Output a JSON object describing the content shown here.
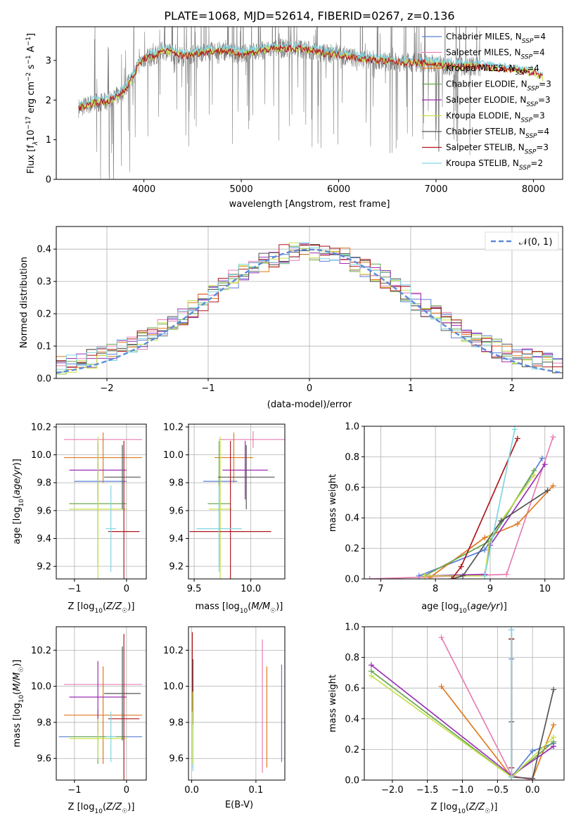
{
  "figure": {
    "title": "PLATE=1068, MJD=52614, FIBERID=0267, z=0.136"
  },
  "colors": {
    "Chabrier MILES": "#5b7fd6",
    "Salpeter MILES": "#e77fb3",
    "Kroupa MILES": "#e07a1f",
    "Chabrier ELODIE": "#6aa84f",
    "Salpeter ELODIE": "#9b2fb5",
    "Kroupa ELODIE": "#c6e04a",
    "Chabrier STELIB": "#555555",
    "Salpeter STELIB": "#b0191e",
    "Kroupa STELIB": "#7fd6e0",
    "data": "#808080",
    "normal": "#5b8bd8"
  },
  "chart_data": [
    {
      "id": "spectrum",
      "type": "line",
      "xlabel": "wavelength [Angstrom, rest frame]",
      "ylabel_main": "Flux [f",
      "ylabel_sub1": "λ",
      "ylabel_mid": "10",
      "ylabel_sup1": "−17",
      "ylabel_rest": " erg cm",
      "ylabel_sup2": "−2",
      "ylabel_rest2": " s",
      "ylabel_sup3": "−1",
      "ylabel_rest3": " A",
      "ylabel_sup4": "−1",
      "ylabel_end": "]",
      "xlim": [
        3100,
        8300
      ],
      "ylim": [
        0,
        3.85
      ],
      "xticks": [
        4000,
        5000,
        6000,
        7000,
        8000
      ],
      "yticks": [
        0,
        1,
        2,
        3
      ],
      "grid": false,
      "legend_position": "upper right",
      "legend": [
        {
          "model": "Chabrier MILES",
          "label": "Chabrier MILES, N",
          "sub": "SSP",
          "value": "=4"
        },
        {
          "model": "Salpeter MILES",
          "label": "Salpeter MILES, N",
          "sub": "SSP",
          "value": "=4"
        },
        {
          "model": "Kroupa MILES",
          "label": "Kroupa MILES, N",
          "sub": "SSP",
          "value": "=4"
        },
        {
          "model": "Chabrier ELODIE",
          "label": "Chabrier ELODIE, N",
          "sub": "SSP",
          "value": "=3"
        },
        {
          "model": "Salpeter ELODIE",
          "label": "Salpeter ELODIE, N",
          "sub": "SSP",
          "value": "=3"
        },
        {
          "model": "Kroupa ELODIE",
          "label": "Kroupa ELODIE, N",
          "sub": "SSP",
          "value": "=3"
        },
        {
          "model": "Chabrier STELIB",
          "label": "Chabrier STELIB, N",
          "sub": "SSP",
          "value": "=4"
        },
        {
          "model": "Salpeter STELIB",
          "label": "Salpeter STELIB, N",
          "sub": "SSP",
          "value": "=3"
        },
        {
          "model": "Kroupa STELIB",
          "label": "Kroupa STELIB, N",
          "sub": "SSP",
          "value": "=2"
        }
      ],
      "model_curve": {
        "x": [
          3330,
          3400,
          3500,
          3600,
          3700,
          3800,
          3900,
          3950,
          4000,
          4100,
          4200,
          4300,
          4400,
          4600,
          4800,
          5000,
          5200,
          5400,
          5600,
          5800,
          6000,
          6200,
          6400,
          6600,
          6800,
          7000,
          7200,
          7400,
          7600,
          7800,
          8000,
          8100
        ],
        "y": [
          1.8,
          1.85,
          1.95,
          1.95,
          2.05,
          2.25,
          2.65,
          2.9,
          3.05,
          3.1,
          3.25,
          3.2,
          3.1,
          3.2,
          3.25,
          3.15,
          3.25,
          3.3,
          3.3,
          3.2,
          3.15,
          3.05,
          3.0,
          2.95,
          2.95,
          2.9,
          2.85,
          2.85,
          2.8,
          2.75,
          2.7,
          2.55
        ]
      }
    },
    {
      "id": "residuals",
      "type": "histogram",
      "xlabel": "(data-model)/error",
      "ylabel": "Normed distribution",
      "xlim": [
        -2.5,
        2.5
      ],
      "ylim": [
        0,
        0.47
      ],
      "xticks": [
        -2,
        -1,
        0,
        1,
        2
      ],
      "yticks": [
        0.0,
        0.1,
        0.2,
        0.3,
        0.4
      ],
      "grid": true,
      "legend_position": "upper right",
      "normal_label": "𝒩(0, 1)",
      "bin_edges_start": -2.5,
      "bin_width": 0.1
    },
    {
      "id": "age_vs_Z",
      "type": "errorbar",
      "xlabel": "Z [log",
      "xlabel_sub": "10",
      "xlabel_end": "(Z/Z",
      "xlabel_sun": "☉",
      "xlabel_close": ")]",
      "ylabel": "age  [log",
      "ylabel_sub": "10",
      "ylabel_end": "(age/yr)]",
      "xlim": [
        -1.35,
        0.38
      ],
      "ylim": [
        9.11,
        10.22
      ],
      "xticks": [
        -1,
        0
      ],
      "yticks": [
        9.2,
        9.4,
        9.6,
        9.8,
        10.0,
        10.2
      ],
      "grid": true,
      "points": [
        {
          "model": "Chabrier MILES",
          "x": -0.5,
          "xerr": 0.5,
          "y": 9.81,
          "yerr": 0.0
        },
        {
          "model": "Salpeter MILES",
          "x": -0.45,
          "xerr": 0.75,
          "y": 10.11,
          "yerr": 0.0
        },
        {
          "model": "Kroupa MILES",
          "x": -0.45,
          "xerr": 0.75,
          "y": 9.98,
          "yerr": 0.18
        },
        {
          "model": "Chabrier ELODIE",
          "x": -0.55,
          "xerr": 0.55,
          "y": 9.65,
          "yerr": 0.45
        },
        {
          "model": "Salpeter ELODIE",
          "x": -0.55,
          "xerr": 0.55,
          "y": 9.89,
          "yerr": 0.21
        },
        {
          "model": "Kroupa ELODIE",
          "x": -0.55,
          "xerr": 0.55,
          "y": 9.61,
          "yerr": 0.52
        },
        {
          "model": "Chabrier STELIB",
          "x": -0.08,
          "xerr": 0.35,
          "y": 9.84,
          "yerr": 0.23
        },
        {
          "model": "Salpeter STELIB",
          "x": -0.05,
          "xerr": 0.3,
          "y": 9.45,
          "yerr": 0.65
        },
        {
          "model": "Kroupa STELIB",
          "x": -0.3,
          "xerr": 0.1,
          "y": 9.47,
          "yerr": 0.31
        }
      ]
    },
    {
      "id": "age_vs_mass",
      "type": "errorbar",
      "xlabel": "mass [log",
      "xlabel_sub": "10",
      "xlabel_end": "(M/M",
      "xlabel_sun": "☉",
      "xlabel_close": ")]",
      "xlim": [
        9.45,
        10.3
      ],
      "ylim": [
        9.11,
        10.22
      ],
      "xticks": [
        9.5,
        10.0
      ],
      "yticks": [
        9.2,
        9.4,
        9.6,
        9.8,
        10.0,
        10.2
      ],
      "grid": true,
      "points": [
        {
          "model": "Chabrier MILES",
          "x": 9.73,
          "xerr": 0.15,
          "y": 9.81,
          "yerr": 0.0
        },
        {
          "model": "Salpeter MILES",
          "x": 10.02,
          "xerr": 0.3,
          "y": 10.11,
          "yerr": 0.06
        },
        {
          "model": "Kroupa MILES",
          "x": 9.85,
          "xerr": 0.17,
          "y": 9.98,
          "yerr": 0.18
        },
        {
          "model": "Chabrier ELODIE",
          "x": 9.72,
          "xerr": 0.1,
          "y": 9.65,
          "yerr": 0.45
        },
        {
          "model": "Salpeter ELODIE",
          "x": 9.95,
          "xerr": 0.2,
          "y": 9.89,
          "yerr": 0.21
        },
        {
          "model": "Kroupa ELODIE",
          "x": 9.73,
          "xerr": 0.1,
          "y": 9.61,
          "yerr": 0.52
        },
        {
          "model": "Chabrier STELIB",
          "x": 9.96,
          "xerr": 0.25,
          "y": 9.84,
          "yerr": 0.23
        },
        {
          "model": "Salpeter STELIB",
          "x": 9.82,
          "xerr": 0.36,
          "y": 9.45,
          "yerr": 0.65
        },
        {
          "model": "Kroupa STELIB",
          "x": 9.72,
          "xerr": 0.2,
          "y": 9.47,
          "yerr": 0.31
        }
      ]
    },
    {
      "id": "massweight_vs_age",
      "type": "line",
      "xlabel": "age  [log",
      "xlabel_sub": "10",
      "xlabel_end": "(age/yr)]",
      "ylabel": "mass weight",
      "xlim": [
        6.7,
        10.35
      ],
      "ylim": [
        0,
        1.0
      ],
      "xticks": [
        7,
        8,
        9,
        10
      ],
      "yticks": [
        0.0,
        0.2,
        0.4,
        0.6,
        0.8,
        1.0
      ],
      "grid": true,
      "series": [
        {
          "model": "Chabrier MILES",
          "x": [
            7.7,
            8.9,
            9.95
          ],
          "y": [
            0.02,
            0.19,
            0.79
          ]
        },
        {
          "model": "Salpeter MILES",
          "x": [
            6.8,
            9.3,
            10.15
          ],
          "y": [
            0.0,
            0.03,
            0.93
          ]
        },
        {
          "model": "Kroupa MILES",
          "x": [
            7.9,
            8.9,
            9.5,
            10.15
          ],
          "y": [
            0.01,
            0.27,
            0.36,
            0.61
          ]
        },
        {
          "model": "Chabrier ELODIE",
          "x": [
            7.8,
            9.0,
            9.8
          ],
          "y": [
            0.02,
            0.25,
            0.71
          ]
        },
        {
          "model": "Salpeter ELODIE",
          "x": [
            7.8,
            8.9,
            9.0,
            10.0
          ],
          "y": [
            0.02,
            0.03,
            0.22,
            0.75
          ]
        },
        {
          "model": "Kroupa ELODIE",
          "x": [
            7.8,
            8.9,
            9.0,
            9.8
          ],
          "y": [
            0.02,
            0.02,
            0.28,
            0.68
          ]
        },
        {
          "model": "Chabrier STELIB",
          "x": [
            8.3,
            8.5,
            9.2,
            10.05
          ],
          "y": [
            0.0,
            0.02,
            0.38,
            0.58
          ]
        },
        {
          "model": "Salpeter STELIB",
          "x": [
            8.3,
            8.47,
            9.5
          ],
          "y": [
            0.0,
            0.08,
            0.92
          ]
        },
        {
          "model": "Kroupa STELIB",
          "x": [
            8.9,
            9.45
          ],
          "y": [
            0.02,
            0.98
          ]
        }
      ]
    },
    {
      "id": "mass_vs_Z",
      "type": "errorbar",
      "xlabel": "Z [log",
      "xlabel_sub": "10",
      "xlabel_end": "(Z/Z",
      "xlabel_sun": "☉",
      "xlabel_close": ")]",
      "ylabel": "mass [log",
      "ylabel_sub": "10",
      "ylabel_end": "(M/M",
      "ylabel_sun": "☉",
      "ylabel_close": ")]",
      "xlim": [
        -1.35,
        0.38
      ],
      "ylim": [
        9.48,
        10.33
      ],
      "xticks": [
        -1,
        0
      ],
      "yticks": [
        9.6,
        9.8,
        10.0,
        10.2
      ],
      "grid": true,
      "points": [
        {
          "model": "Chabrier MILES",
          "x": -0.5,
          "xerr": 0.8,
          "y": 9.72,
          "yerr": 0.0
        },
        {
          "model": "Salpeter MILES",
          "x": -0.45,
          "xerr": 0.75,
          "y": 10.01,
          "yerr": 0.0
        },
        {
          "model": "Kroupa MILES",
          "x": -0.45,
          "xerr": 0.75,
          "y": 9.84,
          "yerr": 0.27
        },
        {
          "model": "Chabrier ELODIE",
          "x": -0.55,
          "xerr": 0.55,
          "y": 9.72,
          "yerr": 0.15
        },
        {
          "model": "Salpeter ELODIE",
          "x": -0.55,
          "xerr": 0.55,
          "y": 9.94,
          "yerr": 0.2
        },
        {
          "model": "Kroupa ELODIE",
          "x": -0.55,
          "xerr": 0.55,
          "y": 9.71,
          "yerr": 0.11
        },
        {
          "model": "Chabrier STELIB",
          "x": -0.08,
          "xerr": 0.35,
          "y": 9.96,
          "yerr": 0.26
        },
        {
          "model": "Salpeter STELIB",
          "x": -0.05,
          "xerr": 0.3,
          "y": 9.82,
          "yerr": 0.47
        },
        {
          "model": "Kroupa STELIB",
          "x": -0.3,
          "xerr": 0.1,
          "y": 9.72,
          "yerr": 0.14
        }
      ]
    },
    {
      "id": "mass_vs_ebv",
      "type": "errorbar",
      "xlabel": "E(B-V)",
      "xlim": [
        -0.005,
        0.145
      ],
      "ylim": [
        9.48,
        10.33
      ],
      "xticks": [
        0.0,
        0.1
      ],
      "yticks": [
        9.6,
        9.8,
        10.0,
        10.2
      ],
      "grid": true,
      "points": [
        {
          "model": "Chabrier MILES",
          "x": 0.14,
          "xerr": 0.0,
          "y": 9.85,
          "yerr": 0.27
        },
        {
          "model": "Salpeter MILES",
          "x": 0.11,
          "xerr": 0.0,
          "y": 9.89,
          "yerr": 0.37
        },
        {
          "model": "Kroupa MILES",
          "x": 0.117,
          "xerr": 0.0,
          "y": 9.83,
          "yerr": 0.28
        },
        {
          "model": "Salpeter STELIB",
          "x": 0.001,
          "xerr": 0.0,
          "y": 10.08,
          "yerr": 0.22
        },
        {
          "model": "Chabrier STELIB",
          "x": 0.002,
          "xerr": 0.0,
          "y": 9.85,
          "yerr": 0.3
        },
        {
          "model": "Kroupa STELIB",
          "x": 0.002,
          "xerr": 0.0,
          "y": 9.66,
          "yerr": 0.13
        },
        {
          "model": "Kroupa ELODIE",
          "x": 0.0015,
          "xerr": 0.0,
          "y": 9.77,
          "yerr": 0.2
        }
      ]
    },
    {
      "id": "massweight_vs_Z",
      "type": "line",
      "xlabel": "Z [log",
      "xlabel_sub": "10",
      "xlabel_end": "(Z/Z",
      "xlabel_sun": "☉",
      "xlabel_close": ")]",
      "ylabel": "mass weight",
      "xlim": [
        -2.4,
        0.45
      ],
      "ylim": [
        0,
        1.0
      ],
      "xticks": [
        -2.0,
        -1.5,
        -1.0,
        -0.5,
        0.0
      ],
      "yticks": [
        0.0,
        0.2,
        0.4,
        0.6,
        0.8,
        1.0
      ],
      "grid": true,
      "series": [
        {
          "model": "Chabrier MILES",
          "x": [
            -0.3,
            -0.3,
            -0.3,
            0.0,
            0.3
          ],
          "y": [
            0.98,
            0.79,
            0.02,
            0.19,
            0.24
          ]
        },
        {
          "model": "Salpeter MILES",
          "x": [
            -1.3,
            -0.3,
            0.0
          ],
          "y": [
            0.93,
            0.03,
            0.0
          ]
        },
        {
          "model": "Kroupa MILES",
          "x": [
            -1.3,
            -0.3,
            0.0,
            0.3
          ],
          "y": [
            0.61,
            0.02,
            0.01,
            0.36
          ]
        },
        {
          "model": "Chabrier ELODIE",
          "x": [
            -2.3,
            -0.3,
            0.3
          ],
          "y": [
            0.71,
            0.02,
            0.25
          ]
        },
        {
          "model": "Salpeter ELODIE",
          "x": [
            -2.3,
            -0.3,
            0.3
          ],
          "y": [
            0.75,
            0.03,
            0.22
          ]
        },
        {
          "model": "Kroupa ELODIE",
          "x": [
            -2.3,
            -0.3,
            0.3
          ],
          "y": [
            0.68,
            0.02,
            0.28
          ]
        },
        {
          "model": "Chabrier STELIB",
          "x": [
            -0.3,
            -0.3,
            -0.3,
            0.0,
            0.3
          ],
          "y": [
            0.92,
            0.38,
            0.02,
            0.01,
            0.59
          ]
        },
        {
          "model": "Salpeter STELIB",
          "x": [
            -0.3,
            -0.3
          ],
          "y": [
            0.92,
            0.08
          ]
        },
        {
          "model": "Kroupa STELIB",
          "x": [
            -0.3,
            -0.3
          ],
          "y": [
            0.98,
            0.02
          ]
        }
      ]
    }
  ]
}
